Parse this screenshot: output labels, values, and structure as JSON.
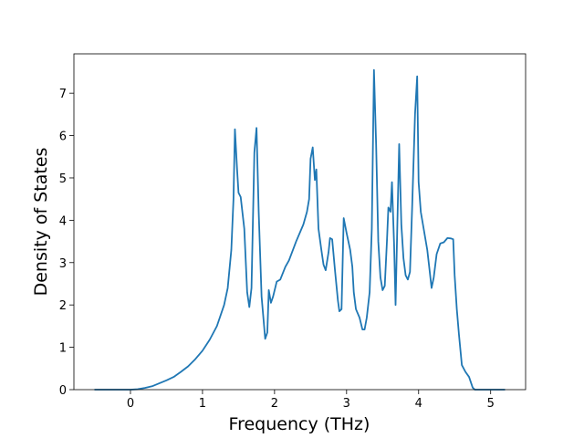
{
  "chart_data": {
    "type": "line",
    "xlabel": "Frequency (THz)",
    "ylabel": "Density of States",
    "x": [
      -0.5,
      0,
      0.1,
      0.2,
      0.3,
      0.4,
      0.5,
      0.6,
      0.7,
      0.8,
      0.9,
      1.0,
      1.1,
      1.2,
      1.3,
      1.35,
      1.4,
      1.43,
      1.45,
      1.48,
      1.5,
      1.53,
      1.58,
      1.62,
      1.65,
      1.68,
      1.72,
      1.75,
      1.78,
      1.82,
      1.87,
      1.9,
      1.92,
      1.95,
      1.98,
      2.03,
      2.08,
      2.15,
      2.2,
      2.3,
      2.4,
      2.45,
      2.48,
      2.5,
      2.53,
      2.56,
      2.58,
      2.61,
      2.65,
      2.68,
      2.71,
      2.75,
      2.77,
      2.8,
      2.84,
      2.88,
      2.9,
      2.93,
      2.96,
      3.0,
      3.05,
      3.08,
      3.1,
      3.13,
      3.18,
      3.22,
      3.25,
      3.28,
      3.32,
      3.35,
      3.38,
      3.41,
      3.44,
      3.47,
      3.5,
      3.53,
      3.56,
      3.58,
      3.61,
      3.63,
      3.66,
      3.68,
      3.71,
      3.73,
      3.76,
      3.79,
      3.82,
      3.85,
      3.88,
      3.91,
      3.95,
      3.98,
      4.0,
      4.03,
      4.07,
      4.12,
      4.15,
      4.18,
      4.21,
      4.25,
      4.3,
      4.35,
      4.4,
      4.45,
      4.48,
      4.5,
      4.53,
      4.56,
      4.6,
      4.65,
      4.7,
      4.75,
      4.78,
      5.2
    ],
    "series": [
      {
        "color": "#1f77b4",
        "values": [
          0,
          0,
          0.01,
          0.04,
          0.08,
          0.15,
          0.22,
          0.3,
          0.42,
          0.55,
          0.72,
          0.92,
          1.18,
          1.5,
          2.0,
          2.4,
          3.3,
          4.5,
          6.15,
          5.2,
          4.65,
          4.55,
          3.8,
          2.3,
          1.95,
          2.4,
          5.6,
          6.18,
          4.2,
          2.2,
          1.2,
          1.35,
          2.35,
          2.05,
          2.2,
          2.55,
          2.6,
          2.9,
          3.05,
          3.5,
          3.9,
          4.2,
          4.5,
          5.45,
          5.72,
          4.95,
          5.2,
          3.8,
          3.3,
          2.95,
          2.82,
          3.25,
          3.58,
          3.55,
          2.8,
          2.1,
          1.85,
          1.9,
          4.05,
          3.7,
          3.3,
          2.9,
          2.3,
          1.9,
          1.7,
          1.42,
          1.42,
          1.7,
          2.3,
          3.8,
          7.55,
          5.8,
          3.5,
          2.65,
          2.35,
          2.45,
          3.5,
          4.3,
          4.2,
          4.9,
          3.4,
          2.0,
          4.3,
          5.8,
          3.9,
          3.1,
          2.7,
          2.6,
          2.78,
          4.3,
          6.5,
          7.4,
          4.9,
          4.2,
          3.8,
          3.3,
          2.85,
          2.4,
          2.65,
          3.2,
          3.45,
          3.48,
          3.58,
          3.57,
          3.55,
          2.7,
          1.9,
          1.3,
          0.58,
          0.42,
          0.3,
          0.05,
          0,
          0
        ]
      }
    ],
    "xlim": [
      -0.785,
      5.485
    ],
    "ylim": [
      0,
      7.93
    ],
    "xticks": [
      0,
      1,
      2,
      3,
      4,
      5
    ],
    "yticks": [
      0,
      1,
      2,
      3,
      4,
      5,
      6,
      7
    ]
  }
}
